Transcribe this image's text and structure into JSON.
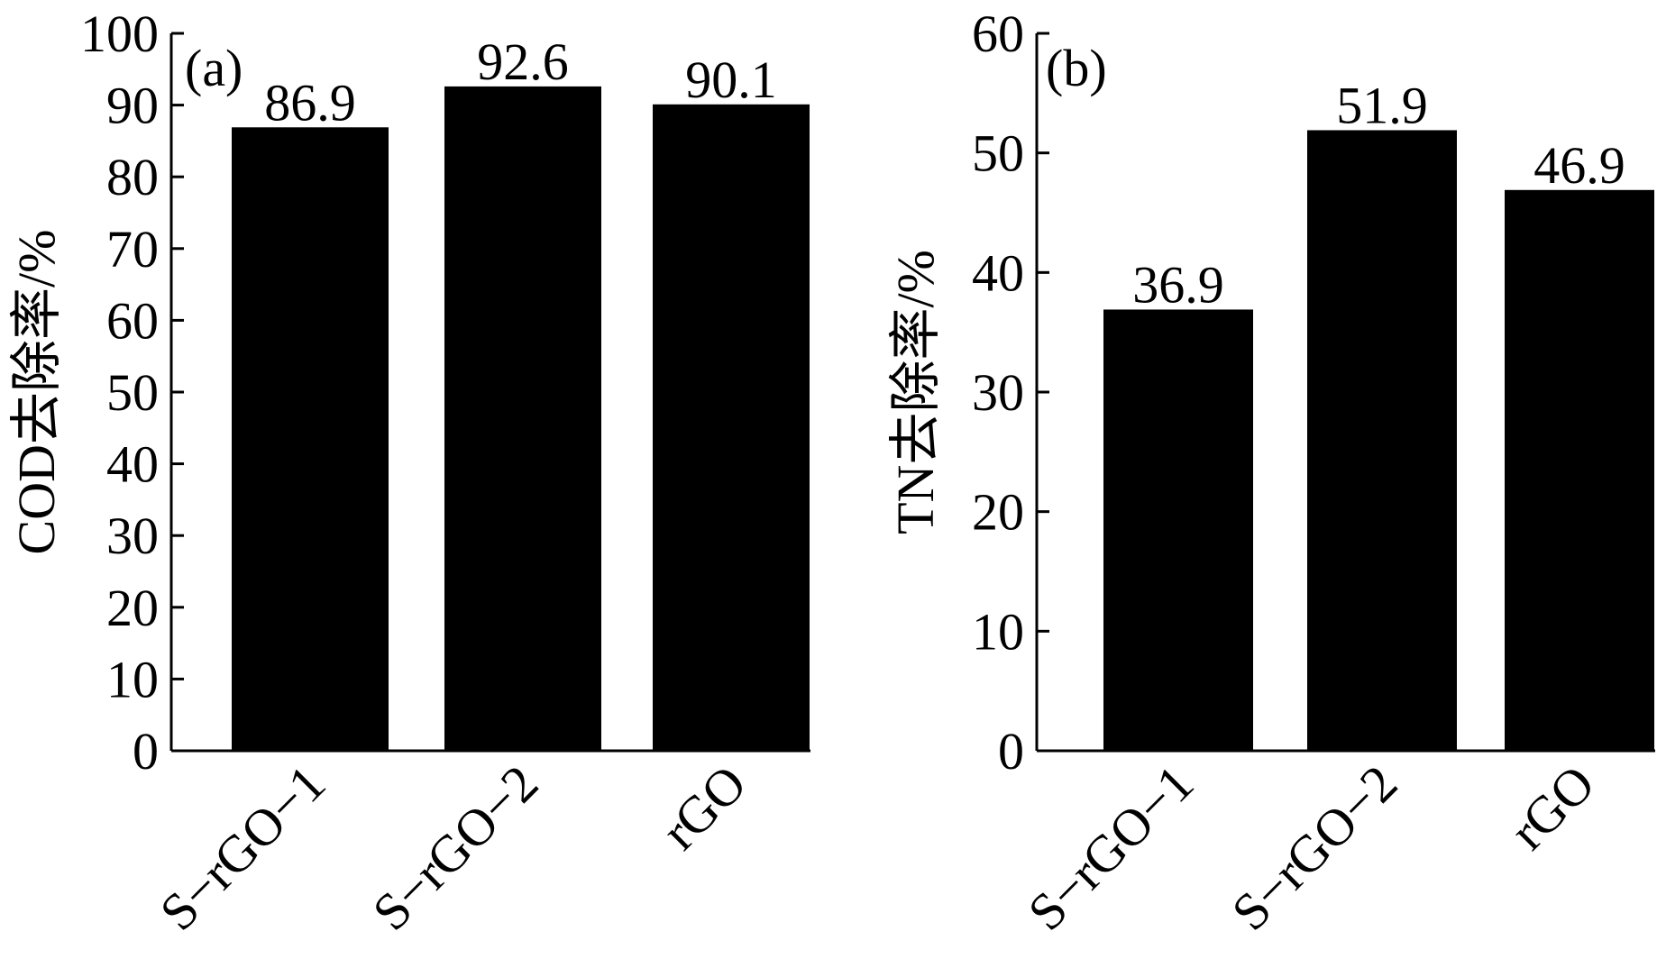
{
  "chart_data": [
    {
      "type": "bar",
      "panel_label": "(a)",
      "ylabel": "COD去除率/%",
      "xlabel": "",
      "categories": [
        "S−rGO−1",
        "S−rGO−2",
        "rGO"
      ],
      "values": [
        86.9,
        92.6,
        90.1
      ],
      "data_labels": [
        "86.9",
        "92.6",
        "90.1"
      ],
      "ylim": [
        0,
        100
      ],
      "yticks": [
        0,
        10,
        20,
        30,
        40,
        50,
        60,
        70,
        80,
        90,
        100
      ],
      "ytick_labels": [
        "0",
        "10",
        "20",
        "30",
        "40",
        "50",
        "60",
        "70",
        "80",
        "90",
        "100"
      ],
      "bar_color": "#000000",
      "grid": false
    },
    {
      "type": "bar",
      "panel_label": "(b)",
      "ylabel": "TN去除率/%",
      "xlabel": "",
      "categories": [
        "S−rGO−1",
        "S−rGO−2",
        "rGO"
      ],
      "values": [
        36.9,
        51.9,
        46.9
      ],
      "data_labels": [
        "36.9",
        "51.9",
        "46.9"
      ],
      "ylim": [
        0,
        60
      ],
      "yticks": [
        0,
        10,
        20,
        30,
        40,
        50,
        60
      ],
      "ytick_labels": [
        "0",
        "10",
        "20",
        "30",
        "40",
        "50",
        "60"
      ],
      "bar_color": "#000000",
      "grid": false
    }
  ]
}
